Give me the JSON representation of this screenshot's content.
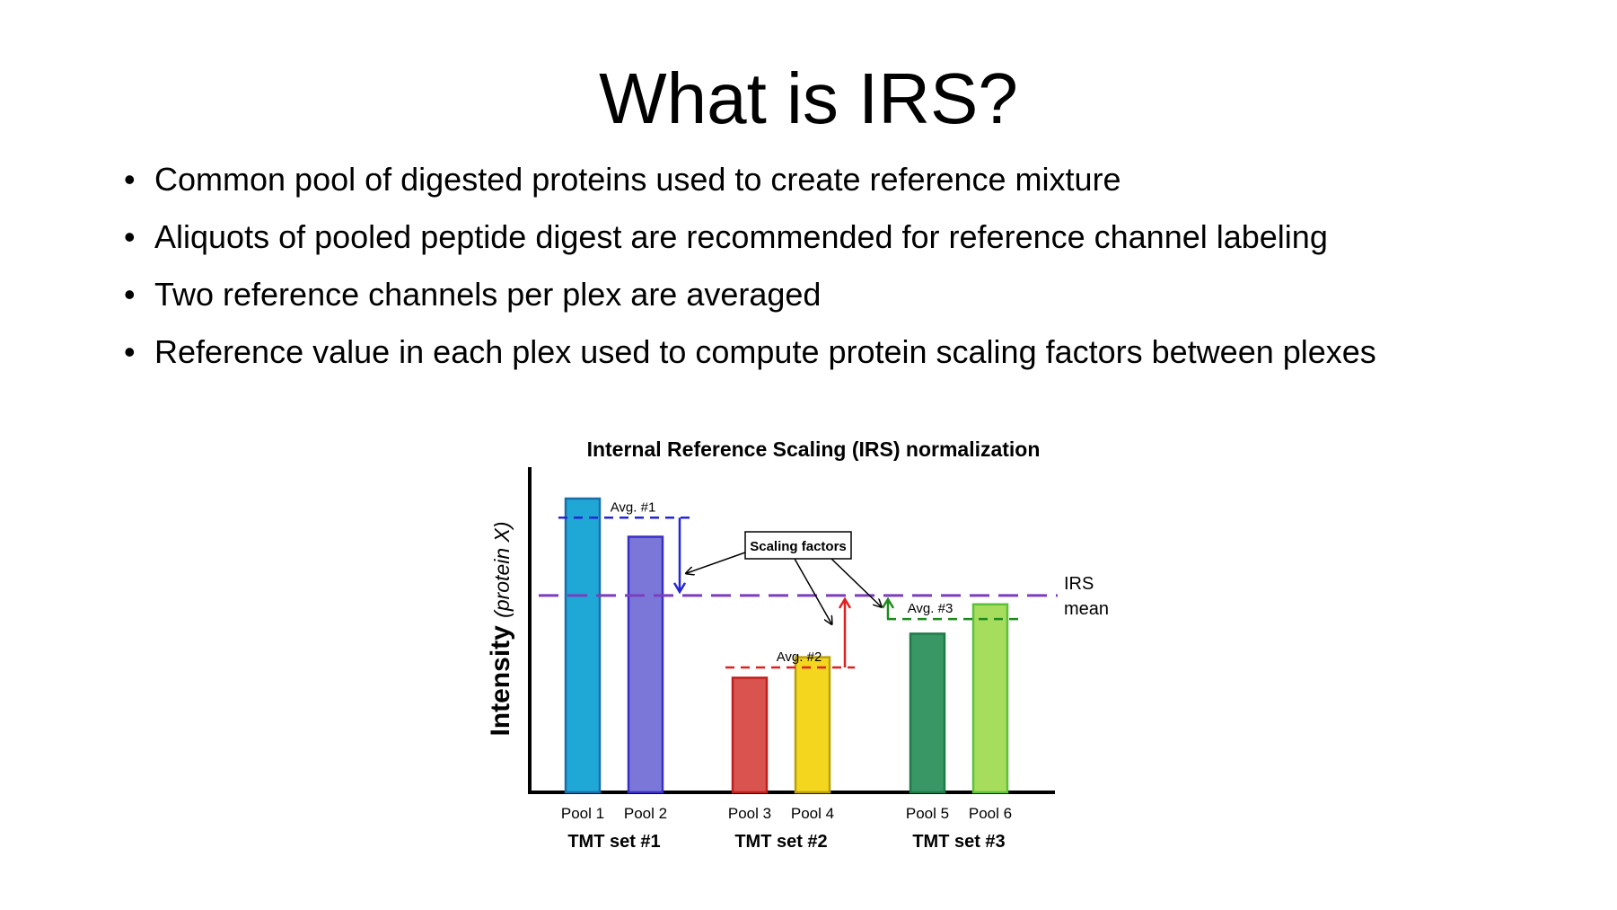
{
  "slide": {
    "title": "What is IRS?",
    "bullets": [
      "Common pool of digested proteins used to create reference mixture",
      "Aliquots of pooled peptide digest are recommended for reference channel labeling",
      "Two reference channels per plex are averaged",
      "Reference value in each plex used to compute protein scaling factors between plexes"
    ]
  },
  "chart_data": {
    "type": "bar",
    "title": "Internal Reference Scaling (IRS) normalization",
    "ylabel_main": "Intensity",
    "ylabel_sub": "(protein X)",
    "categories": [
      "Pool 1",
      "Pool 2",
      "Pool 3",
      "Pool 4",
      "Pool 5",
      "Pool 6"
    ],
    "groups": [
      "TMT set #1",
      "TMT set #2",
      "TMT set #3"
    ],
    "values": [
      100,
      87,
      39,
      46,
      54,
      64
    ],
    "ylim": [
      0,
      105
    ],
    "bar_fill": [
      "#1fa7d5",
      "#7b77d9",
      "#d9534f",
      "#f4d61f",
      "#389764",
      "#a6dd5c"
    ],
    "bar_stroke": [
      "#1a6fa8",
      "#3a2fc4",
      "#c01f1f",
      "#b8a010",
      "#1f7a48",
      "#5cc23a"
    ],
    "averages": [
      {
        "label": "Avg. #1",
        "value": 93.5,
        "color": "#2525d8"
      },
      {
        "label": "Avg. #2",
        "value": 42.5,
        "color": "#e02020"
      },
      {
        "label": "Avg. #3",
        "value": 59,
        "color": "#1e8a1e"
      }
    ],
    "irs_mean": {
      "label_line1": "IRS",
      "label_line2": "mean",
      "value": 67,
      "color": "#7a3fbf"
    },
    "callout": "Scaling factors",
    "grid": false,
    "legend": "none"
  }
}
